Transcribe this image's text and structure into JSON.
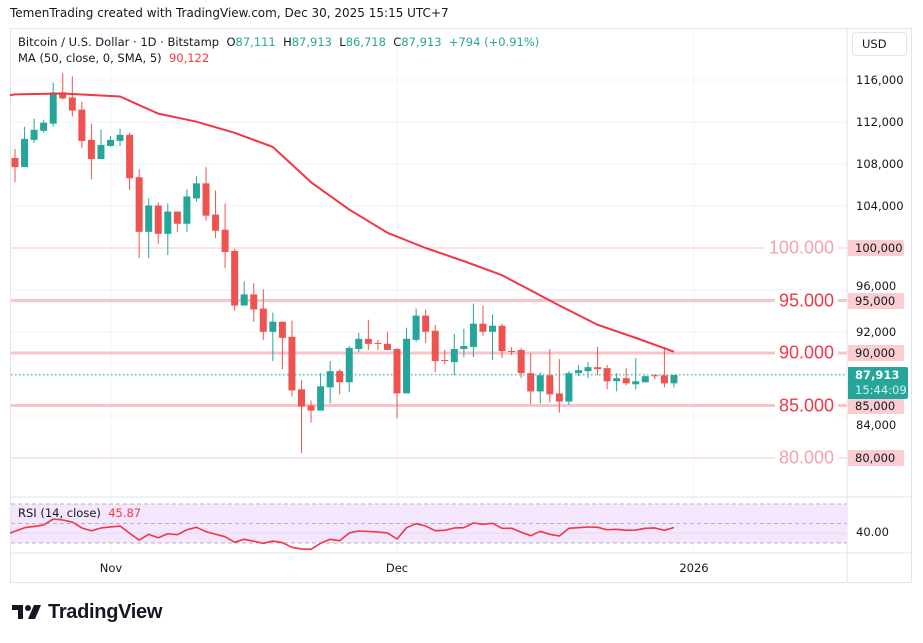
{
  "credit": "TemenTrading created with TradingView.com, Dec 30, 2025 15:15 UTC+7",
  "legend": {
    "symbol": "Bitcoin / U.S. Dollar · 1D · Bitstamp",
    "o_label": "O",
    "o": "87,111",
    "h_label": "H",
    "h": "87,913",
    "l_label": "L",
    "l": "86,718",
    "c_label": "C",
    "c": "87,913",
    "change": "+794 (+0.91%)",
    "ma_label": "MA (50, close, 0, SMA, 5)",
    "ma_value": "90,122"
  },
  "currency_button": "USD",
  "price_axis": {
    "labels": [
      "116,000",
      "112,000",
      "108,000",
      "104,000",
      "96,000",
      "92,000",
      "84,000"
    ],
    "tags": [
      "100,000",
      "95,000",
      "90,000",
      "85,000",
      "80,000"
    ],
    "current_price": "87,913",
    "countdown": "15:44:09"
  },
  "levels": [
    {
      "value": 100000,
      "label": "100.000",
      "strength": "weak"
    },
    {
      "value": 95000,
      "label": "95.000",
      "strength": "strong"
    },
    {
      "value": 90000,
      "label": "90.000",
      "strength": "strong"
    },
    {
      "value": 85000,
      "label": "85.000",
      "strength": "strong"
    },
    {
      "value": 80000,
      "label": "80.000",
      "strength": "weak"
    }
  ],
  "time_axis": [
    "Nov",
    "Dec",
    "2026"
  ],
  "rsi": {
    "label": "RSI (14, close)",
    "value": "45.87",
    "axis_label": "40.00",
    "upper": 70,
    "middle": 50,
    "lower": 30
  },
  "colors": {
    "up": "#26a69a",
    "down": "#ef5350",
    "ma": "#f23645",
    "rsi": "#f23645",
    "level": "#f9c4c8",
    "rsi_band": "#f3e6fd"
  },
  "logo": "TradingView",
  "chart_data": {
    "type": "candlestick",
    "ylim": [
      78000,
      118000
    ],
    "candles_columns": [
      "date",
      "open",
      "high",
      "low",
      "close"
    ],
    "candles": [
      [
        "2025-10-22",
        108570,
        109430,
        106260,
        107700
      ],
      [
        "2025-10-23",
        107700,
        111550,
        107700,
        110390
      ],
      [
        "2025-10-24",
        110300,
        112320,
        110010,
        111260
      ],
      [
        "2025-10-25",
        111160,
        112220,
        110970,
        111930
      ],
      [
        "2025-10-26",
        111840,
        115780,
        111550,
        114820
      ],
      [
        "2025-10-27",
        114820,
        116650,
        114150,
        114240
      ],
      [
        "2025-10-28",
        114340,
        116360,
        112510,
        113090
      ],
      [
        "2025-10-29",
        113180,
        113950,
        109530,
        110200
      ],
      [
        "2025-10-30",
        110300,
        111840,
        106550,
        108470
      ],
      [
        "2025-10-31",
        108470,
        111260,
        108470,
        109820
      ],
      [
        "2025-11-01",
        109720,
        110680,
        109620,
        110300
      ],
      [
        "2025-11-02",
        110200,
        111360,
        109720,
        110780
      ],
      [
        "2025-11-03",
        110780,
        110970,
        105490,
        106640
      ],
      [
        "2025-11-04",
        106740,
        107510,
        99040,
        101540
      ],
      [
        "2025-11-05",
        101540,
        104720,
        99040,
        104050
      ],
      [
        "2025-11-06",
        104050,
        104330,
        100390,
        101350
      ],
      [
        "2025-11-07",
        101350,
        104240,
        99330,
        103470
      ],
      [
        "2025-11-08",
        103470,
        103470,
        101540,
        102310
      ],
      [
        "2025-11-09",
        102310,
        105580,
        101540,
        104910
      ],
      [
        "2025-11-10",
        104720,
        106840,
        104430,
        106160
      ],
      [
        "2025-11-11",
        106160,
        107700,
        102600,
        103080
      ],
      [
        "2025-11-12",
        103180,
        105490,
        100970,
        101640
      ],
      [
        "2025-11-13",
        101740,
        104240,
        98080,
        99620
      ],
      [
        "2025-11-14",
        99720,
        99910,
        94040,
        94520
      ],
      [
        "2025-11-15",
        94520,
        96830,
        94520,
        95580
      ],
      [
        "2025-11-16",
        95580,
        96640,
        92980,
        94140
      ],
      [
        "2025-11-17",
        94230,
        96060,
        91250,
        92020
      ],
      [
        "2025-11-18",
        92020,
        93850,
        89230,
        92980
      ],
      [
        "2025-11-19",
        92980,
        92980,
        88460,
        91440
      ],
      [
        "2025-11-20",
        91540,
        93080,
        85860,
        86440
      ],
      [
        "2025-11-21",
        86540,
        87400,
        80480,
        84900
      ],
      [
        "2025-11-22",
        85000,
        85480,
        83360,
        84520
      ],
      [
        "2025-11-23",
        84520,
        88080,
        84520,
        86830
      ],
      [
        "2025-11-24",
        86730,
        89230,
        85190,
        88270
      ],
      [
        "2025-11-25",
        88270,
        88460,
        86060,
        87210
      ],
      [
        "2025-11-26",
        87210,
        90670,
        86250,
        90480
      ],
      [
        "2025-11-27",
        90380,
        91920,
        90100,
        91350
      ],
      [
        "2025-11-28",
        91350,
        93170,
        90290,
        90870
      ],
      [
        "2025-11-29",
        90960,
        91250,
        90290,
        90900
      ],
      [
        "2025-11-30",
        90870,
        92020,
        90290,
        90290
      ],
      [
        "2025-12-01",
        90380,
        90480,
        83750,
        86150
      ],
      [
        "2025-12-02",
        86150,
        92410,
        86150,
        91350
      ],
      [
        "2025-12-03",
        91250,
        94230,
        91060,
        93560
      ],
      [
        "2025-12-04",
        93560,
        94140,
        90960,
        92020
      ],
      [
        "2025-12-05",
        92120,
        92690,
        88170,
        89230
      ],
      [
        "2025-12-06",
        89330,
        90290,
        88940,
        89300
      ],
      [
        "2025-12-07",
        89130,
        91830,
        87880,
        90380
      ],
      [
        "2025-12-08",
        90380,
        92310,
        89620,
        90670
      ],
      [
        "2025-12-09",
        90580,
        94710,
        89620,
        92790
      ],
      [
        "2025-12-10",
        92790,
        94520,
        91640,
        92020
      ],
      [
        "2025-12-11",
        92020,
        93660,
        89330,
        92600
      ],
      [
        "2025-12-12",
        92600,
        92790,
        89520,
        90190
      ],
      [
        "2025-12-13",
        90190,
        90580,
        89810,
        90150
      ],
      [
        "2025-12-14",
        90290,
        90480,
        87600,
        88080
      ],
      [
        "2025-12-15",
        88080,
        90000,
        85090,
        86340
      ],
      [
        "2025-12-16",
        86340,
        88170,
        85190,
        87880
      ],
      [
        "2025-12-17",
        87880,
        90380,
        85290,
        86060
      ],
      [
        "2025-12-18",
        86150,
        89420,
        84320,
        85380
      ],
      [
        "2025-12-19",
        85380,
        88270,
        85090,
        88080
      ],
      [
        "2025-12-20",
        88080,
        88850,
        87790,
        88360
      ],
      [
        "2025-12-21",
        88270,
        89130,
        87600,
        88650
      ],
      [
        "2025-12-22",
        88650,
        90580,
        87880,
        88460
      ],
      [
        "2025-12-23",
        88560,
        88850,
        86540,
        87310
      ],
      [
        "2025-12-24",
        87310,
        88080,
        86340,
        87600
      ],
      [
        "2025-12-25",
        87600,
        88560,
        86920,
        87110
      ],
      [
        "2025-12-26",
        87020,
        89520,
        86540,
        87310
      ],
      [
        "2025-12-27",
        87210,
        87880,
        87210,
        87790
      ],
      [
        "2025-12-28",
        87880,
        87980,
        87500,
        87850
      ],
      [
        "2025-12-29",
        87880,
        90580,
        86730,
        87111
      ],
      [
        "2025-12-30",
        87111,
        87913,
        86718,
        87913
      ]
    ],
    "ma50": [
      [
        "2025-10-22",
        114630
      ],
      [
        "2025-10-27",
        114720
      ],
      [
        "2025-11-02",
        114430
      ],
      [
        "2025-11-06",
        112800
      ],
      [
        "2025-11-10",
        112030
      ],
      [
        "2025-11-14",
        110970
      ],
      [
        "2025-11-18",
        109620
      ],
      [
        "2025-11-22",
        106260
      ],
      [
        "2025-11-26",
        103660
      ],
      [
        "2025-11-30",
        101450
      ],
      [
        "2025-12-04",
        100000
      ],
      [
        "2025-12-08",
        98750
      ],
      [
        "2025-12-12",
        97410
      ],
      [
        "2025-12-15",
        95960
      ],
      [
        "2025-12-18",
        94520
      ],
      [
        "2025-12-22",
        92690
      ],
      [
        "2025-12-26",
        91440
      ],
      [
        "2025-12-30",
        90122
      ]
    ],
    "rsi14": [
      42,
      45.7,
      47,
      48.5,
      54.6,
      53.6,
      51.5,
      45.4,
      42.6,
      45.4,
      46.5,
      47.4,
      40,
      33,
      38.9,
      35.4,
      39.5,
      38.5,
      43.6,
      46.1,
      41.6,
      39,
      36.5,
      30.7,
      33.8,
      31.8,
      29.7,
      32,
      30.3,
      25.6,
      23.8,
      23.5,
      29.7,
      33.8,
      32.4,
      40.3,
      42.3,
      41.8,
      41.3,
      40.3,
      34.1,
      45.7,
      49.8,
      47.4,
      42.6,
      43,
      45.4,
      45.7,
      50.5,
      49.2,
      50.2,
      45.1,
      45.1,
      41,
      37.5,
      42,
      38.9,
      37.2,
      45.1,
      45.7,
      46.4,
      46.1,
      43.6,
      44,
      43,
      43.3,
      45.1,
      45.4,
      43,
      45.87
    ],
    "rsi_ylim": [
      20,
      75
    ]
  }
}
